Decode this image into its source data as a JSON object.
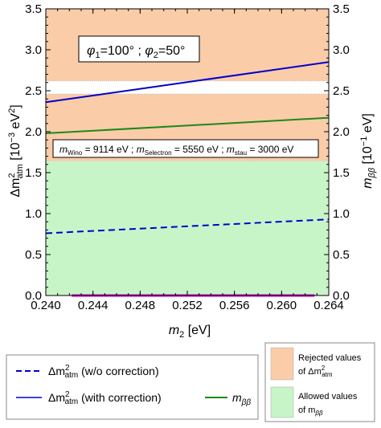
{
  "chart_data": {
    "type": "line",
    "xlabel": "m",
    "xlabel_sub": "2",
    "xlabel_unit": " [eV]",
    "xlim": [
      0.24,
      0.264
    ],
    "ylim": [
      0,
      3.5
    ],
    "ylabel_left": {
      "main": "Δm",
      "sup": "2",
      "sub": "atm",
      "unit": " [10",
      "unit_sup": "−3",
      "unit_end": " eV",
      "unit_end_sup": "2",
      "close": "]"
    },
    "ylabel_right": {
      "main": "m",
      "sub": "ββ",
      "unit": " [10",
      "unit_sup": "−1",
      "unit_end": " eV]"
    },
    "x_ticks": [
      "0.240",
      "0.244",
      "0.248",
      "0.252",
      "0.256",
      "0.260",
      "0.264"
    ],
    "x_tick_values": [
      0.24,
      0.244,
      0.248,
      0.252,
      0.256,
      0.26,
      0.264
    ],
    "y_ticks": [
      "0.0",
      "0.5",
      "1.0",
      "1.5",
      "2.0",
      "2.5",
      "3.0",
      "3.5"
    ],
    "y_tick_values": [
      0.0,
      0.5,
      1.0,
      1.5,
      2.0,
      2.5,
      3.0,
      3.5
    ],
    "regions": [
      {
        "name": "rejected-region-top",
        "y0": 2.62,
        "y1": 3.5,
        "kind": "rejected"
      },
      {
        "name": "rejected-region-middle",
        "y0": 1.64,
        "y1": 2.46,
        "kind": "rejected"
      },
      {
        "name": "allowed-region",
        "y0": 0.0,
        "y1": 1.64,
        "kind": "allowed"
      }
    ],
    "series": [
      {
        "name": "Δm²atm (w/o correction)",
        "style": "dashed",
        "color": "#0000cc",
        "x": [
          0.24,
          0.264
        ],
        "y": [
          0.76,
          0.93
        ]
      },
      {
        "name": "Δm²atm (with correction)",
        "style": "solid",
        "color": "#0000cc",
        "x": [
          0.24,
          0.264
        ],
        "y": [
          2.36,
          2.85
        ]
      },
      {
        "name": "mββ",
        "style": "solid",
        "color": "#1a8a1a",
        "x": [
          0.24,
          0.264
        ],
        "y": [
          1.98,
          2.17
        ]
      },
      {
        "name": "magenta-baseline",
        "style": "solid",
        "color": "#dd00dd",
        "x": [
          0.2422,
          0.2628
        ],
        "y": [
          0.0,
          0.0
        ]
      }
    ],
    "annotations": {
      "phases": {
        "p1": "φ",
        "p1sub": "1",
        "p1val": "=100° ; ",
        "p2": "φ",
        "p2sub": "2",
        "p2val": "=50°"
      },
      "masses": {
        "m1": "m",
        "m1sub": "Wino",
        "m1val": " = 9114 eV ; ",
        "m2": "m",
        "m2sub": "Selectron",
        "m2val": " = 5550 eV ; ",
        "m3": "m",
        "m3sub": "stau",
        "m3val": " = 3000 eV"
      }
    },
    "legend": {
      "dashed": {
        "main": "Δm",
        "sup": "2",
        "sub": "atm",
        "rest": " (w/o correction)"
      },
      "solid": {
        "main": "Δm",
        "sup": "2",
        "sub": "atm",
        "rest": " (with correction)"
      },
      "green": {
        "main": "m",
        "sub": "ββ"
      },
      "rejected": {
        "line1": "Rejected values",
        "line2a": "of Δm",
        "line2sup": "2",
        "line2sub": "atm"
      },
      "allowed": {
        "line1": "Allowed values",
        "line2a": "of m",
        "line2sub": "ββ"
      }
    },
    "colors": {
      "rejected": "#fbcca8",
      "allowed": "#c8f5c8",
      "blue": "#0000cc",
      "green": "#1a8a1a",
      "magenta": "#dd00dd"
    }
  }
}
